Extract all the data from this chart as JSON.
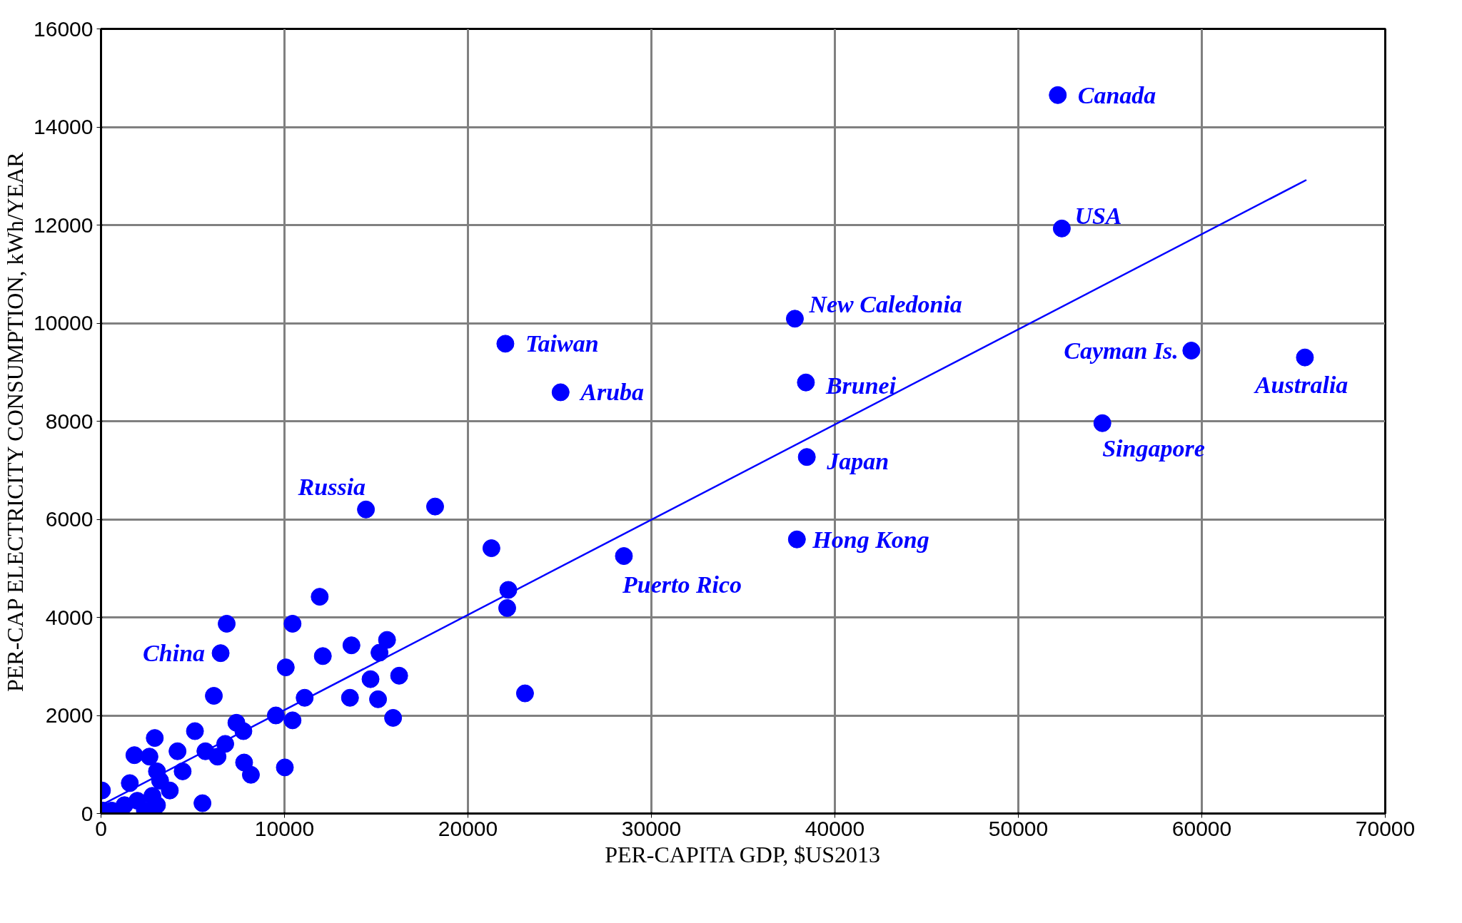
{
  "chart_data": {
    "type": "scatter",
    "xlabel": "PER-CAPITA GDP, $US2013",
    "ylabel": "PER-CAP ELECTRICITY CONSUMPTION, kWh/YEAR",
    "xlim": [
      0,
      70000
    ],
    "xticks": [
      0,
      10000,
      20000,
      30000,
      40000,
      50000,
      60000,
      70000
    ],
    "ylim": [
      0,
      16000
    ],
    "yticks": [
      0,
      2000,
      4000,
      6000,
      8000,
      10000,
      12000,
      14000,
      16000
    ],
    "grid": true,
    "series": [
      {
        "marker": "circle",
        "color": "#0000ff",
        "x": [
          52150,
          52370,
          37820,
          22040,
          25050,
          59430,
          65620,
          38420,
          54580,
          38470,
          37930,
          28500,
          14440,
          18210,
          21280,
          22200,
          22140,
          23110,
          11920,
          6850,
          10440,
          6520,
          12090,
          13650,
          15590,
          15180,
          10070,
          14690,
          16250,
          6150,
          11100,
          13570,
          15100,
          15920,
          9530,
          10440,
          5120,
          7380,
          7760,
          2930,
          1820,
          2640,
          4170,
          5690,
          6770,
          6350,
          10020,
          7800,
          8170,
          5530,
          580,
          50,
          1570,
          3220,
          2800,
          1980,
          100,
          3050,
          4450,
          3750,
          1280,
          2390,
          3050
        ],
        "values": [
          14650,
          11930,
          10090,
          9580,
          8590,
          9440,
          9300,
          8790,
          7960,
          7270,
          5590,
          5250,
          6200,
          6260,
          5410,
          4560,
          4190,
          2450,
          4420,
          3870,
          3870,
          3270,
          3210,
          3430,
          3540,
          3280,
          2980,
          2740,
          2810,
          2400,
          2360,
          2360,
          2330,
          1950,
          2000,
          1900,
          1680,
          1850,
          1680,
          1540,
          1190,
          1160,
          1270,
          1270,
          1420,
          1160,
          940,
          1040,
          790,
          210,
          60,
          470,
          620,
          670,
          360,
          260,
          60,
          860,
          860,
          470,
          170,
          60,
          170
        ]
      },
      {
        "type": "line",
        "color": "#0000ff",
        "x": [
          0,
          65700
        ],
        "values": [
          170,
          12920
        ]
      }
    ],
    "annotations": [
      {
        "text": "Canada",
        "x": 52150,
        "y": 14650
      },
      {
        "text": "USA",
        "x": 52370,
        "y": 11930
      },
      {
        "text": "New Caledonia",
        "x": 37820,
        "y": 10090
      },
      {
        "text": "Taiwan",
        "x": 22040,
        "y": 9580
      },
      {
        "text": "Aruba",
        "x": 25050,
        "y": 8590
      },
      {
        "text": "Cayman Is.",
        "x": 59430,
        "y": 9440
      },
      {
        "text": "Australia",
        "x": 65620,
        "y": 9300
      },
      {
        "text": "Brunei",
        "x": 38420,
        "y": 8790
      },
      {
        "text": "Singapore",
        "x": 54580,
        "y": 7960
      },
      {
        "text": "Japan",
        "x": 38470,
        "y": 7270
      },
      {
        "text": "Hong Kong",
        "x": 37930,
        "y": 5590
      },
      {
        "text": "Puerto Rico",
        "x": 28500,
        "y": 5250
      },
      {
        "text": "Russia",
        "x": 14440,
        "y": 6200
      },
      {
        "text": "China",
        "x": 6520,
        "y": 3270
      }
    ]
  }
}
